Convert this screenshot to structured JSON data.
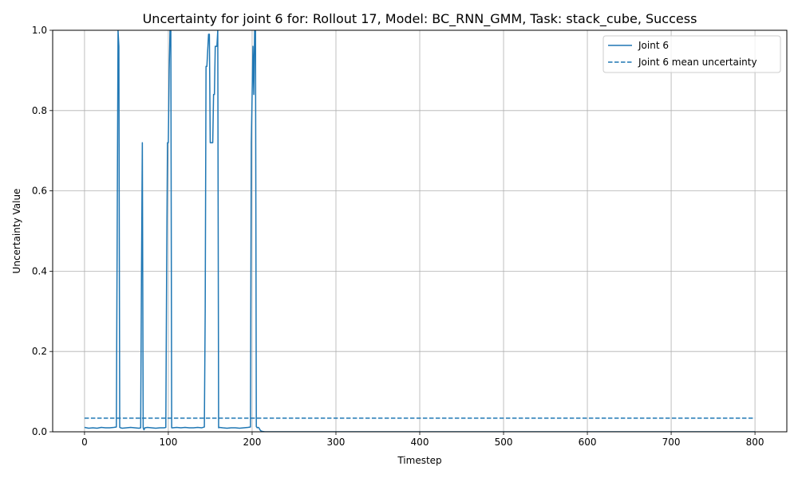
{
  "chart_data": {
    "type": "line",
    "title": "Uncertainty for joint 6 for: Rollout 17, Model: BC_RNN_GMM, Task: stack_cube, Success",
    "xlabel": "Timestep",
    "ylabel": "Uncertainty Value",
    "xlim": [
      -38,
      838
    ],
    "ylim": [
      0,
      1.0
    ],
    "xticks": [
      0,
      100,
      200,
      300,
      400,
      500,
      600,
      700,
      800
    ],
    "yticks": [
      0.0,
      0.2,
      0.4,
      0.6,
      0.8,
      1.0
    ],
    "xtick_labels": [
      "0",
      "100",
      "200",
      "300",
      "400",
      "500",
      "600",
      "700",
      "800"
    ],
    "ytick_labels": [
      "0.0",
      "0.2",
      "0.4",
      "0.6",
      "0.8",
      "1.0"
    ],
    "grid": true,
    "legend_position": "top-right",
    "colors": {
      "series": "#1f77b4",
      "grid": "#b0b0b0",
      "axis": "#000000"
    },
    "series": [
      {
        "name": "Joint 6",
        "style": "solid",
        "x": [
          0,
          5,
          10,
          15,
          20,
          25,
          30,
          35,
          38,
          39,
          40,
          41,
          42,
          43,
          45,
          50,
          55,
          60,
          65,
          67,
          68,
          69,
          70,
          71,
          72,
          75,
          80,
          85,
          90,
          95,
          97,
          98,
          99,
          100,
          101,
          102,
          103,
          104,
          105,
          110,
          115,
          120,
          125,
          130,
          135,
          140,
          143,
          144,
          145,
          146,
          147,
          148,
          149,
          150,
          151,
          152,
          153,
          154,
          155,
          156,
          157,
          158,
          159,
          160,
          161,
          165,
          170,
          175,
          180,
          185,
          190,
          195,
          198,
          199,
          200,
          201,
          202,
          203,
          204,
          205,
          206,
          207,
          208,
          210,
          212,
          215,
          220,
          250,
          300,
          400,
          500,
          600,
          700,
          800
        ],
        "y": [
          0.011,
          0.009,
          0.01,
          0.009,
          0.011,
          0.01,
          0.01,
          0.011,
          0.012,
          0.5,
          1.0,
          0.96,
          0.011,
          0.01,
          0.009,
          0.01,
          0.011,
          0.01,
          0.009,
          0.01,
          0.4,
          0.72,
          0.01,
          0.005,
          0.01,
          0.011,
          0.01,
          0.009,
          0.01,
          0.01,
          0.011,
          0.4,
          0.72,
          0.72,
          0.9,
          1.0,
          1.0,
          0.01,
          0.01,
          0.011,
          0.01,
          0.011,
          0.01,
          0.01,
          0.011,
          0.01,
          0.012,
          0.3,
          0.91,
          0.91,
          0.95,
          0.99,
          0.99,
          0.72,
          0.72,
          0.72,
          0.72,
          0.84,
          0.84,
          0.96,
          0.96,
          0.96,
          1.0,
          0.01,
          0.011,
          0.01,
          0.009,
          0.01,
          0.01,
          0.009,
          0.01,
          0.011,
          0.012,
          0.72,
          0.84,
          0.96,
          0.84,
          1.0,
          1.0,
          0.013,
          0.01,
          0.011,
          0.01,
          0.003,
          0.001,
          0.0,
          0.0,
          0.0,
          0.0,
          0.0,
          0.0,
          0.0,
          0.0,
          0.0
        ]
      },
      {
        "name": "Joint 6 mean uncertainty",
        "style": "dashed",
        "x": [
          0,
          800
        ],
        "y": [
          0.034,
          0.034
        ]
      }
    ]
  }
}
